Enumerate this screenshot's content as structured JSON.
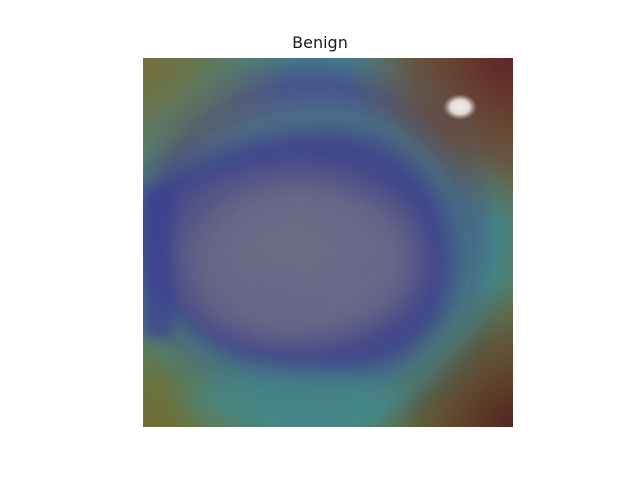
{
  "figure": {
    "title": "Benign"
  },
  "image": {
    "description_colors": {
      "background": "#ffffff",
      "heatmap_low": "#3a3a8f",
      "heatmap_mid": "#3f8a8a",
      "heatmap_high": "#5a1f1f",
      "lesion_tone": "#6b6a86",
      "skin_tone": "#7a6a45"
    }
  }
}
